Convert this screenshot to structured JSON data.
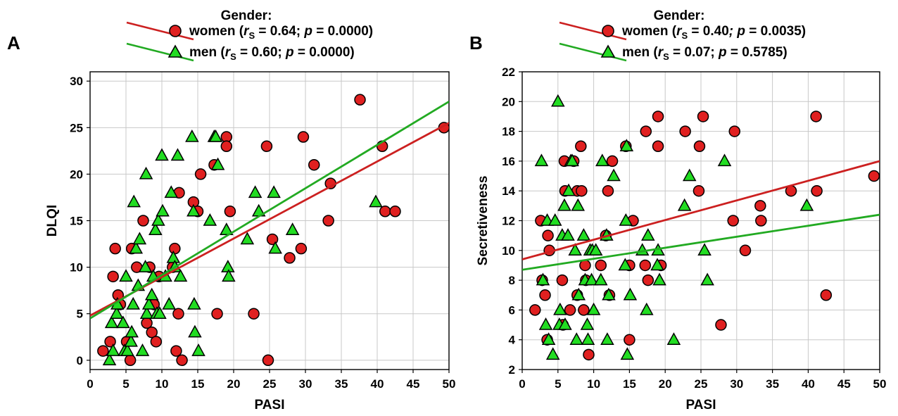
{
  "chart_data": [
    {
      "panel": "A",
      "type": "scatter",
      "legend_title": "Gender:",
      "legend": {
        "placement": "top-center",
        "items": [
          {
            "marker": "circle",
            "label": "women",
            "stats": " = 0.64; ",
            "p": "p",
            "pval": " = 0.0000)"
          },
          {
            "marker": "triangle",
            "label": "men",
            "stats": " = 0.60; ",
            "p": "p",
            "pval": " = 0.0000)"
          }
        ]
      },
      "xlabel": "PASI",
      "ylabel": "DLQI",
      "xlim": [
        0,
        50
      ],
      "ylim": [
        -1,
        31
      ],
      "xticks": [
        0,
        5,
        10,
        15,
        20,
        25,
        30,
        35,
        40,
        45,
        50
      ],
      "yticks": [
        0,
        5,
        10,
        15,
        20,
        25,
        30
      ],
      "grid": true,
      "series": [
        {
          "name": "women",
          "marker": "circle",
          "color": "#e02020",
          "fit": {
            "x": [
              0,
              50
            ],
            "y": [
              4.8,
              25.5
            ],
            "color": "#cc2020"
          },
          "points": [
            [
              1.8,
              1
            ],
            [
              2.8,
              2
            ],
            [
              3.2,
              9
            ],
            [
              3.5,
              12
            ],
            [
              3.9,
              7
            ],
            [
              4.2,
              6
            ],
            [
              5.1,
              2
            ],
            [
              5.6,
              0
            ],
            [
              5.8,
              12
            ],
            [
              6.5,
              10
            ],
            [
              7.4,
              15
            ],
            [
              7.9,
              4
            ],
            [
              8.3,
              10
            ],
            [
              8.6,
              3
            ],
            [
              8.9,
              6
            ],
            [
              9.2,
              2
            ],
            [
              9.6,
              9
            ],
            [
              11.5,
              10
            ],
            [
              11.8,
              12
            ],
            [
              12.0,
              1
            ],
            [
              12.3,
              5
            ],
            [
              12.4,
              18
            ],
            [
              12.8,
              0
            ],
            [
              14.4,
              17
            ],
            [
              15.0,
              16
            ],
            [
              15.4,
              20
            ],
            [
              17.3,
              21
            ],
            [
              17.7,
              5
            ],
            [
              19.0,
              24
            ],
            [
              19.0,
              23
            ],
            [
              19.5,
              16
            ],
            [
              22.8,
              5
            ],
            [
              24.6,
              23
            ],
            [
              24.8,
              0
            ],
            [
              25.4,
              13
            ],
            [
              27.8,
              11
            ],
            [
              29.4,
              12
            ],
            [
              29.7,
              24
            ],
            [
              31.2,
              21
            ],
            [
              33.2,
              15
            ],
            [
              33.5,
              19
            ],
            [
              37.6,
              28
            ],
            [
              40.7,
              23
            ],
            [
              41.1,
              16
            ],
            [
              42.5,
              16
            ],
            [
              49.3,
              25
            ]
          ]
        },
        {
          "name": "men",
          "marker": "triangle",
          "color": "#22dd22",
          "fit": {
            "x": [
              0,
              50
            ],
            "y": [
              4.5,
              27.8
            ],
            "color": "#22aa22"
          },
          "points": [
            [
              2.7,
              0
            ],
            [
              3.0,
              4
            ],
            [
              3.2,
              1
            ],
            [
              3.7,
              5
            ],
            [
              3.8,
              6
            ],
            [
              4.6,
              4
            ],
            [
              4.8,
              1
            ],
            [
              5.0,
              9
            ],
            [
              5.2,
              1
            ],
            [
              5.7,
              2
            ],
            [
              5.8,
              3
            ],
            [
              6.0,
              6
            ],
            [
              6.1,
              17
            ],
            [
              6.4,
              12
            ],
            [
              6.7,
              8
            ],
            [
              6.9,
              13
            ],
            [
              7.3,
              1
            ],
            [
              7.7,
              10
            ],
            [
              7.8,
              20
            ],
            [
              7.9,
              5
            ],
            [
              8.2,
              6
            ],
            [
              8.6,
              7
            ],
            [
              8.8,
              9
            ],
            [
              9.1,
              14
            ],
            [
              9.3,
              5
            ],
            [
              9.5,
              15
            ],
            [
              9.7,
              5
            ],
            [
              10.0,
              22
            ],
            [
              10.1,
              16
            ],
            [
              10.5,
              9
            ],
            [
              11.0,
              6
            ],
            [
              11.3,
              18
            ],
            [
              11.6,
              11
            ],
            [
              11.8,
              10
            ],
            [
              12.2,
              22
            ],
            [
              12.6,
              9
            ],
            [
              14.2,
              24
            ],
            [
              14.4,
              16
            ],
            [
              14.5,
              6
            ],
            [
              14.6,
              3
            ],
            [
              15.1,
              1
            ],
            [
              16.7,
              15
            ],
            [
              17.3,
              24
            ],
            [
              17.5,
              24
            ],
            [
              17.8,
              21
            ],
            [
              19.2,
              10
            ],
            [
              19.3,
              9
            ],
            [
              19.0,
              14
            ],
            [
              21.9,
              13
            ],
            [
              23.0,
              18
            ],
            [
              23.5,
              16
            ],
            [
              25.6,
              18
            ],
            [
              25.8,
              12
            ],
            [
              28.2,
              14
            ],
            [
              39.8,
              17
            ]
          ]
        }
      ]
    },
    {
      "panel": "B",
      "type": "scatter",
      "legend_title": "Gender:",
      "legend": {
        "placement": "top-center",
        "items": [
          {
            "marker": "circle",
            "label": "women",
            "stats": " = 0.40",
            "stats_tail": "; ",
            "p": "p",
            "pval": " = 0.0035)"
          },
          {
            "marker": "triangle",
            "label": "men",
            "stats": " = 0.07; ",
            "p": "p",
            "pval": " = 0.5785)"
          }
        ]
      },
      "xlabel": "PASI",
      "ylabel": "Secretiveness",
      "xlim": [
        0,
        50
      ],
      "ylim": [
        2,
        22
      ],
      "xticks": [
        0,
        5,
        10,
        15,
        20,
        25,
        30,
        35,
        40,
        45,
        50
      ],
      "yticks": [
        2,
        4,
        6,
        8,
        10,
        12,
        14,
        16,
        18,
        20,
        22
      ],
      "grid": true,
      "series": [
        {
          "name": "women",
          "marker": "circle",
          "color": "#e02020",
          "fit": {
            "x": [
              0,
              50
            ],
            "y": [
              9.4,
              16.0
            ],
            "color": "#cc2020"
          },
          "points": [
            [
              1.8,
              6
            ],
            [
              2.6,
              12
            ],
            [
              2.8,
              8
            ],
            [
              3.2,
              7
            ],
            [
              3.5,
              4
            ],
            [
              3.6,
              11
            ],
            [
              3.8,
              10
            ],
            [
              5.6,
              8
            ],
            [
              5.7,
              5
            ],
            [
              5.9,
              16
            ],
            [
              6.0,
              14
            ],
            [
              6.7,
              6
            ],
            [
              7.2,
              16
            ],
            [
              7.7,
              14
            ],
            [
              7.7,
              7
            ],
            [
              8.2,
              17
            ],
            [
              8.3,
              14
            ],
            [
              8.6,
              6
            ],
            [
              8.8,
              9
            ],
            [
              8.9,
              8
            ],
            [
              9.3,
              3
            ],
            [
              11.0,
              9
            ],
            [
              11.7,
              11
            ],
            [
              12.0,
              14
            ],
            [
              12.2,
              7
            ],
            [
              12.6,
              16
            ],
            [
              14.5,
              17
            ],
            [
              15.0,
              9
            ],
            [
              15.0,
              4
            ],
            [
              15.5,
              12
            ],
            [
              17.2,
              9
            ],
            [
              17.3,
              18
            ],
            [
              17.6,
              8
            ],
            [
              19.0,
              19
            ],
            [
              19.0,
              17
            ],
            [
              19.4,
              9
            ],
            [
              22.8,
              18
            ],
            [
              24.7,
              14
            ],
            [
              24.8,
              17
            ],
            [
              25.3,
              19
            ],
            [
              27.8,
              5
            ],
            [
              29.5,
              12
            ],
            [
              29.7,
              18
            ],
            [
              31.2,
              10
            ],
            [
              33.3,
              13
            ],
            [
              33.4,
              12
            ],
            [
              37.6,
              14
            ],
            [
              41.1,
              19
            ],
            [
              41.2,
              14
            ],
            [
              42.5,
              7
            ],
            [
              49.2,
              15
            ]
          ]
        },
        {
          "name": "men",
          "marker": "triangle",
          "color": "#22dd22",
          "fit": {
            "x": [
              0,
              50
            ],
            "y": [
              8.7,
              12.4
            ],
            "color": "#22aa22"
          },
          "points": [
            [
              2.7,
              16
            ],
            [
              2.9,
              8
            ],
            [
              3.3,
              5
            ],
            [
              3.5,
              12
            ],
            [
              3.7,
              4
            ],
            [
              4.3,
              3
            ],
            [
              4.6,
              12
            ],
            [
              5.0,
              20
            ],
            [
              5.2,
              5
            ],
            [
              5.3,
              6
            ],
            [
              5.6,
              11
            ],
            [
              5.9,
              13
            ],
            [
              6.0,
              5
            ],
            [
              6.4,
              11
            ],
            [
              6.5,
              14
            ],
            [
              6.8,
              16
            ],
            [
              7.0,
              16
            ],
            [
              7.4,
              10
            ],
            [
              7.6,
              4
            ],
            [
              7.8,
              13
            ],
            [
              7.9,
              7
            ],
            [
              8.6,
              11
            ],
            [
              8.8,
              8
            ],
            [
              9.1,
              5
            ],
            [
              9.2,
              4
            ],
            [
              9.5,
              10
            ],
            [
              9.7,
              8
            ],
            [
              9.8,
              10
            ],
            [
              10.0,
              6
            ],
            [
              10.3,
              10
            ],
            [
              11.0,
              8
            ],
            [
              11.2,
              16
            ],
            [
              11.8,
              11
            ],
            [
              11.9,
              4
            ],
            [
              12.1,
              7
            ],
            [
              12.8,
              15
            ],
            [
              14.4,
              9
            ],
            [
              14.5,
              12
            ],
            [
              14.6,
              17
            ],
            [
              14.7,
              3
            ],
            [
              15.1,
              7
            ],
            [
              16.8,
              10
            ],
            [
              17.4,
              6
            ],
            [
              17.6,
              11
            ],
            [
              18.9,
              9
            ],
            [
              19.0,
              10
            ],
            [
              19.2,
              8
            ],
            [
              21.2,
              4
            ],
            [
              22.7,
              13
            ],
            [
              23.4,
              15
            ],
            [
              25.5,
              10
            ],
            [
              25.9,
              8
            ],
            [
              28.3,
              16
            ],
            [
              39.8,
              13
            ]
          ]
        }
      ]
    }
  ]
}
